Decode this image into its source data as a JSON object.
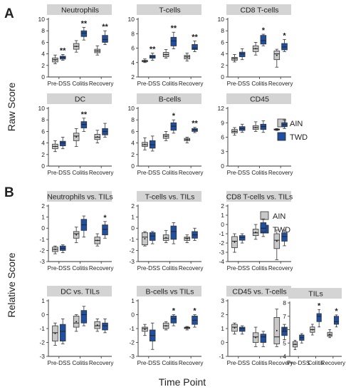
{
  "figure": {
    "panel_a_letter": "A",
    "panel_b_letter": "B",
    "ylabel_a": "Raw Score",
    "ylabel_b": "Relative Score",
    "xlabel": "Time Point",
    "group_labels": [
      "Pre-DSS",
      "Colitis",
      "Recovery"
    ],
    "legend": [
      {
        "name": "AIN",
        "color": "#c8c8c8"
      },
      {
        "name": "TWD",
        "color": "#1f4fa0"
      }
    ],
    "colors": {
      "AIN": "#c8c8c8",
      "TWD": "#1f4fa0",
      "title_bg": "#d4d4d4"
    }
  },
  "chart_data": [
    {
      "type": "box",
      "title": "Neutrophils",
      "categories": [
        "Pre-DSS",
        "Colitis",
        "Recovery"
      ],
      "ylim": [
        0,
        10
      ],
      "yticks": [
        0,
        2,
        4,
        6,
        8,
        10
      ],
      "series": [
        {
          "name": "AIN",
          "boxes": [
            [
              2.3,
              2.6,
              3.0,
              3.3,
              3.8
            ],
            [
              4.3,
              4.8,
              5.3,
              5.8,
              6.3
            ],
            [
              3.8,
              4.2,
              4.5,
              4.8,
              5.4
            ]
          ]
        },
        {
          "name": "TWD",
          "boxes": [
            [
              2.9,
              3.1,
              3.4,
              3.6,
              3.9
            ],
            [
              6.4,
              7.0,
              7.6,
              8.0,
              8.6
            ],
            [
              5.6,
              6.0,
              6.5,
              7.2,
              8.0
            ]
          ]
        }
      ],
      "sig": [
        [
          "**"
        ],
        [
          "**"
        ],
        [
          "**"
        ]
      ]
    },
    {
      "type": "box",
      "title": "T-cells",
      "categories": [
        "Pre-DSS",
        "Colitis",
        "Recovery"
      ],
      "ylim": [
        2,
        10
      ],
      "yticks": [
        2,
        4,
        6,
        8,
        10
      ],
      "series": [
        {
          "name": "AIN",
          "boxes": [
            [
              4.0,
              4.1,
              4.2,
              4.3,
              4.5
            ],
            [
              4.6,
              4.8,
              5.1,
              5.4,
              5.8
            ],
            [
              4.2,
              4.5,
              4.8,
              5.0,
              5.3
            ]
          ]
        },
        {
          "name": "TWD",
          "boxes": [
            [
              4.3,
              4.6,
              4.8,
              5.0,
              5.3
            ],
            [
              5.9,
              6.3,
              7.0,
              7.5,
              8.2
            ],
            [
              5.5,
              5.8,
              6.0,
              6.5,
              7.0
            ]
          ]
        }
      ],
      "sig": [
        [
          "**"
        ],
        [
          "**"
        ],
        [
          "**"
        ]
      ]
    },
    {
      "type": "box",
      "title": "CD8 T-cells",
      "categories": [
        "Pre-DSS",
        "Colitis",
        "Recovery"
      ],
      "ylim": [
        0,
        10
      ],
      "yticks": [
        0,
        2,
        4,
        6,
        8,
        10
      ],
      "series": [
        {
          "name": "AIN",
          "boxes": [
            [
              2.6,
              2.9,
              3.2,
              3.4,
              3.9
            ],
            [
              3.8,
              4.4,
              4.9,
              5.4,
              6.0
            ],
            [
              1.7,
              3.0,
              4.0,
              4.5,
              4.8
            ]
          ]
        },
        {
          "name": "TWD",
          "boxes": [
            [
              3.0,
              3.5,
              4.0,
              4.3,
              4.9
            ],
            [
              5.4,
              5.7,
              6.3,
              7.2,
              7.4
            ],
            [
              4.4,
              4.7,
              5.2,
              5.8,
              6.5
            ]
          ]
        }
      ],
      "sig": [
        [
          ""
        ],
        [
          "*"
        ],
        [
          "*"
        ]
      ]
    },
    {
      "type": "box",
      "title": "DC",
      "categories": [
        "Pre-DSS",
        "Colitis",
        "Recovery"
      ],
      "ylim": [
        0,
        10
      ],
      "yticks": [
        0,
        2,
        4,
        6,
        8,
        10
      ],
      "series": [
        {
          "name": "AIN",
          "boxes": [
            [
              2.5,
              3.0,
              3.4,
              3.8,
              4.4
            ],
            [
              3.4,
              4.4,
              5.2,
              5.7,
              6.5
            ],
            [
              4.0,
              4.6,
              5.0,
              5.5,
              6.2
            ]
          ]
        },
        {
          "name": "TWD",
          "boxes": [
            [
              3.0,
              3.5,
              4.0,
              4.3,
              5.0
            ],
            [
              6.0,
              6.6,
              7.2,
              7.7,
              8.3
            ],
            [
              5.0,
              5.4,
              6.0,
              6.5,
              7.4
            ]
          ]
        }
      ],
      "sig": [
        [
          ""
        ],
        [
          "**"
        ],
        [
          ""
        ]
      ]
    },
    {
      "type": "box",
      "title": "B-cells",
      "categories": [
        "Pre-DSS",
        "Colitis",
        "Recovery"
      ],
      "ylim": [
        0,
        10
      ],
      "yticks": [
        0,
        2,
        4,
        6,
        8,
        10
      ],
      "series": [
        {
          "name": "AIN",
          "boxes": [
            [
              2.8,
              3.4,
              3.7,
              4.1,
              4.9
            ],
            [
              4.4,
              4.8,
              5.2,
              5.5,
              6.0
            ],
            [
              4.0,
              4.4,
              4.6,
              4.8,
              5.0
            ]
          ]
        },
        {
          "name": "TWD",
          "boxes": [
            [
              2.6,
              3.1,
              3.7,
              4.4,
              5.2
            ],
            [
              5.7,
              6.2,
              6.9,
              7.5,
              8.0
            ],
            [
              5.8,
              6.0,
              6.3,
              6.5,
              6.7
            ]
          ]
        }
      ],
      "sig": [
        [
          ""
        ],
        [
          "*"
        ],
        [
          "**"
        ]
      ]
    },
    {
      "type": "box",
      "title": "CD45",
      "categories": [
        "Pre-DSS",
        "Colitis",
        "Recovery"
      ],
      "ylim": [
        0,
        12
      ],
      "yticks": [
        0,
        3,
        6,
        9,
        12
      ],
      "series": [
        {
          "name": "AIN",
          "boxes": [
            [
              6.4,
              6.9,
              7.2,
              7.6,
              8.0
            ],
            [
              7.2,
              7.6,
              8.0,
              8.4,
              9.2
            ],
            [
              7.4,
              7.5,
              7.6,
              7.7,
              7.8
            ]
          ]
        },
        {
          "name": "TWD",
          "boxes": [
            [
              7.0,
              7.4,
              7.8,
              8.2,
              8.7
            ],
            [
              7.0,
              7.6,
              8.2,
              8.7,
              9.4
            ],
            [
              7.8,
              8.2,
              8.6,
              9.0,
              9.6
            ]
          ]
        }
      ],
      "sig": [
        [
          ""
        ],
        [
          ""
        ],
        [
          ""
        ]
      ]
    },
    {
      "type": "box",
      "title": "Neutrophils vs. TILs",
      "categories": [
        "Pre-DSS",
        "Colitis",
        "Recovery"
      ],
      "ylim": [
        -3,
        2
      ],
      "yticks": [
        -3,
        -2,
        -1,
        0,
        1,
        2
      ],
      "series": [
        {
          "name": "AIN",
          "boxes": [
            [
              -2.3,
              -2.1,
              -1.9,
              -1.7,
              -1.6
            ],
            [
              -1.3,
              -0.9,
              -0.5,
              -0.3,
              0.1
            ],
            [
              -1.6,
              -1.4,
              -1.1,
              -0.8,
              -0.5
            ]
          ]
        },
        {
          "name": "TWD",
          "boxes": [
            [
              -2.2,
              -2.0,
              -1.8,
              -1.6,
              -1.5
            ],
            [
              -0.8,
              -0.2,
              0.3,
              0.8,
              1.1
            ],
            [
              -0.9,
              -0.6,
              -0.1,
              0.3,
              0.6
            ]
          ]
        }
      ],
      "sig": [
        [
          ""
        ],
        [
          ""
        ],
        [
          "*"
        ]
      ]
    },
    {
      "type": "box",
      "title": "T-cells vs. TILs",
      "categories": [
        "Pre-DSS",
        "Colitis",
        "Recovery"
      ],
      "ylim": [
        -3,
        2
      ],
      "yticks": [
        -3,
        -2,
        -1,
        0,
        1,
        2
      ],
      "series": [
        {
          "name": "AIN",
          "boxes": [
            [
              -1.6,
              -1.5,
              -0.8,
              -0.4,
              -0.3
            ],
            [
              -1.3,
              -1.1,
              -0.9,
              -0.6,
              -0.2
            ],
            [
              -1.3,
              -1.1,
              -0.9,
              -0.8,
              -0.6
            ]
          ]
        },
        {
          "name": "TWD",
          "boxes": [
            [
              -1.4,
              -1.1,
              -0.7,
              -0.4,
              -0.3
            ],
            [
              -1.4,
              -1.0,
              -0.3,
              0.2,
              0.5
            ],
            [
              -1.1,
              -0.9,
              -0.6,
              -0.3,
              0.0
            ]
          ]
        }
      ],
      "sig": [
        [
          ""
        ],
        [
          ""
        ],
        [
          ""
        ]
      ]
    },
    {
      "type": "box",
      "title": "CD8 T-cells vs. TILs",
      "categories": [
        "Pre-DSS",
        "Colitis",
        "Recovery"
      ],
      "ylim": [
        -4,
        2
      ],
      "yticks": [
        -4,
        -3,
        -2,
        -1,
        0,
        1,
        2
      ],
      "series": [
        {
          "name": "AIN",
          "boxes": [
            [
              -3.0,
              -2.5,
              -1.8,
              -1.3,
              -1.0
            ],
            [
              -1.6,
              -1.2,
              -0.9,
              -0.5,
              0.0
            ],
            [
              -3.8,
              -2.6,
              -1.7,
              -1.0,
              -0.6
            ]
          ]
        },
        {
          "name": "TWD",
          "boxes": [
            [
              -2.0,
              -1.7,
              -1.4,
              -1.2,
              -1.0
            ],
            [
              -1.3,
              -0.8,
              -0.4,
              0.2,
              0.6
            ],
            [
              -2.3,
              -1.8,
              -1.3,
              -0.9,
              -0.6
            ]
          ]
        }
      ],
      "sig": [
        [
          ""
        ],
        [
          ""
        ],
        [
          ""
        ]
      ]
    },
    {
      "type": "box",
      "title": "DC vs. TILs",
      "categories": [
        "Pre-DSS",
        "Colitis",
        "Recovery"
      ],
      "ylim": [
        -3,
        1
      ],
      "yticks": [
        -3,
        -2,
        -1,
        0,
        1
      ],
      "series": [
        {
          "name": "AIN",
          "boxes": [
            [
              -2.2,
              -1.9,
              -1.3,
              -0.8,
              -0.6
            ],
            [
              -1.2,
              -0.9,
              -0.6,
              -0.1,
              0.0
            ],
            [
              -1.2,
              -1.0,
              -0.8,
              -0.5,
              -0.3
            ]
          ]
        },
        {
          "name": "TWD",
          "boxes": [
            [
              -2.1,
              -1.9,
              -1.2,
              -0.7,
              -0.3
            ],
            [
              -0.8,
              -0.6,
              0.0,
              0.3,
              0.6
            ],
            [
              -1.3,
              -1.1,
              -0.8,
              -0.6,
              -0.3
            ]
          ]
        }
      ],
      "sig": [
        [
          ""
        ],
        [
          ""
        ],
        [
          ""
        ]
      ]
    },
    {
      "type": "box",
      "title": "B-cells vs TILs",
      "categories": [
        "Pre-DSS",
        "Colitis",
        "Recovery"
      ],
      "ylim": [
        -3,
        1
      ],
      "yticks": [
        -3,
        -2,
        -1,
        0,
        1
      ],
      "series": [
        {
          "name": "AIN",
          "boxes": [
            [
              -1.5,
              -1.2,
              -1.0,
              -0.9,
              -0.7
            ],
            [
              -1.1,
              -1.0,
              -0.8,
              -0.6,
              -0.5
            ],
            [
              -1.1,
              -1.0,
              -0.95,
              -0.9,
              -0.85
            ]
          ]
        },
        {
          "name": "TWD",
          "boxes": [
            [
              -2.5,
              -1.9,
              -1.5,
              -1.1,
              -0.6
            ],
            [
              -0.8,
              -0.6,
              -0.3,
              -0.1,
              0.0
            ],
            [
              -0.9,
              -0.7,
              -0.4,
              -0.1,
              0.0
            ]
          ]
        }
      ],
      "sig": [
        [
          ""
        ],
        [
          "*"
        ],
        [
          "*"
        ]
      ]
    },
    {
      "type": "box",
      "title": "CD45 vs. T-cells",
      "categories": [
        "Pre-DSS",
        "Colitis",
        "Recovery"
      ],
      "ylim": [
        -1,
        3
      ],
      "yticks": [
        -1,
        0,
        1,
        2,
        3
      ],
      "series": [
        {
          "name": "AIN",
          "boxes": [
            [
              0.6,
              0.8,
              1.1,
              1.3,
              1.4
            ],
            [
              -0.3,
              0.0,
              0.4,
              0.7,
              1.1
            ],
            [
              -0.3,
              -0.1,
              0.4,
              1.8,
              2.4
            ]
          ]
        },
        {
          "name": "TWD",
          "boxes": [
            [
              0.6,
              0.8,
              1.0,
              1.1,
              1.2
            ],
            [
              -0.3,
              0.0,
              0.4,
              0.6,
              0.8
            ],
            [
              0.2,
              0.5,
              0.8,
              1.1,
              1.3
            ]
          ]
        }
      ],
      "sig": [
        [
          ""
        ],
        [
          ""
        ],
        [
          ""
        ]
      ]
    },
    {
      "type": "box",
      "title": "TILs",
      "categories": [
        "Pre-DSS",
        "Colitis",
        "Recovery"
      ],
      "ylim": [
        4,
        8
      ],
      "yticks": [
        4,
        5,
        6,
        7,
        8
      ],
      "series": [
        {
          "name": "AIN",
          "boxes": [
            [
              4.5,
              4.7,
              4.9,
              5.1,
              5.2
            ],
            [
              5.6,
              5.8,
              6.0,
              6.2,
              6.4
            ],
            [
              5.4,
              5.5,
              5.6,
              5.8,
              6.0
            ]
          ]
        },
        {
          "name": "TWD",
          "boxes": [
            [
              5.0,
              5.2,
              5.4,
              5.6,
              5.7
            ],
            [
              6.2,
              6.6,
              7.0,
              7.2,
              7.5
            ],
            [
              6.2,
              6.4,
              6.6,
              7.0,
              7.1
            ]
          ]
        }
      ],
      "sig": [
        [
          ""
        ],
        [
          "*"
        ],
        [
          "*"
        ]
      ]
    }
  ]
}
